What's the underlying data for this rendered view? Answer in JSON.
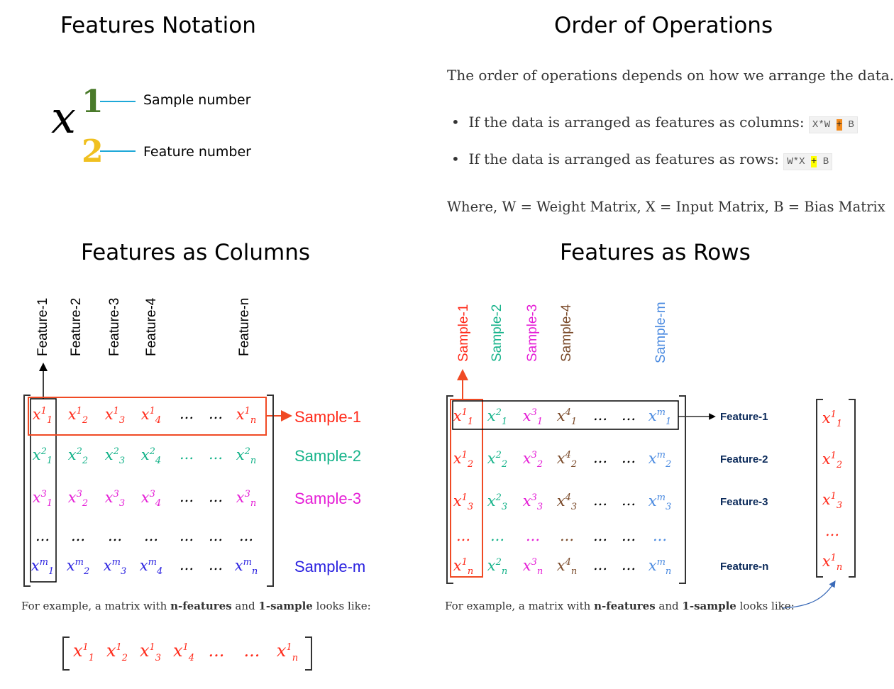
{
  "titles": {
    "notation": "Features Notation",
    "order": "Order of Operations",
    "columns": "Features as Columns",
    "rows": "Features as Rows"
  },
  "notation": {
    "base": "x",
    "super": "1",
    "sub": "2",
    "super_label": "Sample number",
    "sub_label": "Feature number",
    "colors": {
      "super": "#4a7a2a",
      "sub": "#f0c020",
      "line": "#1ea8d8"
    }
  },
  "order": {
    "intro": "The order of operations depends on how we arrange the data.",
    "bullet1_text": "If the data is arranged as features as columns:",
    "bullet1_code_a": "X*W",
    "bullet1_code_op": "+",
    "bullet1_code_b": "B",
    "bullet2_text": "If the data is arranged as features as rows:",
    "bullet2_code_a": "W*X",
    "bullet2_code_op": "+",
    "bullet2_code_b": "B",
    "where": "Where, W = Weight Matrix, X = Input Matrix, B = Bias Matrix"
  },
  "columns_diagram": {
    "feature_headers": [
      "Feature-1",
      "Feature-2",
      "Feature-3",
      "Feature-4",
      "Feature-n"
    ],
    "sample_labels": [
      "Sample-1",
      "Sample-2",
      "Sample-3",
      "Sample-m"
    ],
    "ellipsis": "...",
    "caption_pre": "For example, a matrix with ",
    "caption_bold1": "n-features",
    "caption_mid": " and ",
    "caption_bold2": "1-sample",
    "caption_post": " looks like:"
  },
  "rows_diagram": {
    "sample_headers": [
      "Sample-1",
      "Sample-2",
      "Sample-3",
      "Sample-4",
      "Sample-m"
    ],
    "feature_labels": [
      "Feature-1",
      "Feature-2",
      "Feature-3",
      "Feature-n"
    ],
    "ellipsis": "...",
    "caption_pre": "For example, a matrix with ",
    "caption_bold1": "n-features",
    "caption_mid": " and ",
    "caption_bold2": "1-sample",
    "caption_post": " looks like:"
  },
  "colors": {
    "sample1": "#ff2a1a",
    "sample2": "#16b38a",
    "sample3": "#e51fd6",
    "sample4": "#7a4a2a",
    "samplem_cols": "#2b22e0",
    "samplem_rows": "#4a8ae0",
    "feature_label": "#0b2a5a"
  }
}
